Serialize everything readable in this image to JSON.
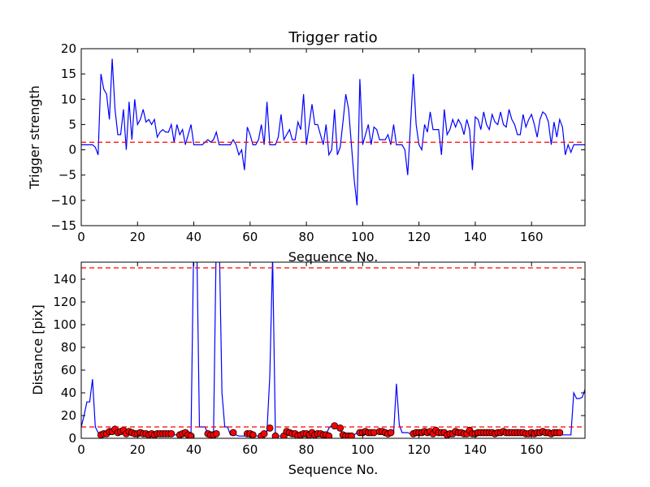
{
  "chart_data": [
    {
      "type": "line",
      "title": "Trigger ratio",
      "xlabel": "Sequence No.",
      "ylabel": "Trigger strength",
      "xlim": [
        0,
        179
      ],
      "ylim": [
        -15,
        20
      ],
      "xticks": [
        0,
        20,
        40,
        60,
        80,
        100,
        120,
        140,
        160
      ],
      "yticks": [
        -15,
        -10,
        -5,
        0,
        5,
        10,
        15,
        20
      ],
      "grid": false,
      "series": [
        {
          "color": "#0000ff",
          "style": "solid",
          "x": [
            0,
            1,
            2,
            3,
            4,
            5,
            6,
            7,
            8,
            9,
            10,
            11,
            12,
            13,
            14,
            15,
            16,
            17,
            18,
            19,
            20,
            21,
            22,
            23,
            24,
            25,
            26,
            27,
            28,
            29,
            30,
            31,
            32,
            33,
            34,
            35,
            36,
            37,
            38,
            39,
            40,
            41,
            42,
            43,
            44,
            45,
            46,
            47,
            48,
            49,
            50,
            51,
            52,
            53,
            54,
            55,
            56,
            57,
            58,
            59,
            60,
            61,
            62,
            63,
            64,
            65,
            66,
            67,
            68,
            69,
            70,
            71,
            72,
            73,
            74,
            75,
            76,
            77,
            78,
            79,
            80,
            81,
            82,
            83,
            84,
            85,
            86,
            87,
            88,
            89,
            90,
            91,
            92,
            93,
            94,
            95,
            96,
            97,
            98,
            99,
            100,
            101,
            102,
            103,
            104,
            105,
            106,
            107,
            108,
            109,
            110,
            111,
            112,
            113,
            114,
            115,
            116,
            117,
            118,
            119,
            120,
            121,
            122,
            123,
            124,
            125,
            126,
            127,
            128,
            129,
            130,
            131,
            132,
            133,
            134,
            135,
            136,
            137,
            138,
            139,
            140,
            141,
            142,
            143,
            144,
            145,
            146,
            147,
            148,
            149,
            150,
            151,
            152,
            153,
            154,
            155,
            156,
            157,
            158,
            159,
            160,
            161,
            162,
            163,
            164,
            165,
            166,
            167,
            168,
            169,
            170,
            171,
            172,
            173,
            174,
            175,
            176,
            177,
            178,
            179
          ],
          "values": [
            1,
            1,
            1,
            1,
            1,
            0.5,
            -1,
            15,
            12,
            11,
            6,
            18,
            8,
            3,
            3,
            8,
            0,
            9.5,
            2,
            10,
            5,
            6,
            8,
            5.5,
            6,
            5,
            6,
            2.5,
            3.5,
            4,
            3.5,
            3.5,
            5,
            1.5,
            5,
            3,
            4,
            1,
            3,
            5,
            1,
            1,
            1,
            1,
            1.5,
            2,
            1.5,
            2,
            3.5,
            1,
            1,
            1,
            1,
            1,
            2,
            1,
            -1,
            0,
            -4,
            4.5,
            3,
            1,
            1,
            2,
            5,
            1,
            9.5,
            1,
            1,
            1,
            2.5,
            7,
            2,
            3,
            4,
            2,
            2,
            5.5,
            4,
            11,
            1,
            5,
            9,
            5,
            5,
            3,
            1,
            5,
            -1,
            0,
            8,
            -1,
            0.5,
            5.5,
            11,
            8,
            1,
            -6,
            -11,
            14,
            1,
            3,
            5,
            1,
            4.5,
            4,
            2,
            2,
            2,
            3,
            1,
            5,
            1,
            1,
            1,
            0,
            -5,
            5,
            15,
            5,
            1,
            0,
            5,
            3.5,
            7.5,
            4,
            4,
            4,
            -1,
            8,
            3,
            4,
            6,
            4.5,
            6,
            5,
            3,
            6,
            4,
            -4,
            6.5,
            6,
            4,
            7.5,
            5,
            4,
            7,
            5.5,
            5,
            7.5,
            5,
            4.5,
            8,
            6,
            5,
            3,
            3,
            7,
            4.5,
            6,
            7,
            5,
            2.5,
            6,
            7.5,
            7,
            5.5,
            1,
            5.5,
            2.5,
            6,
            4.5,
            -1,
            1,
            -0.5,
            1,
            1,
            1,
            1,
            1
          ]
        },
        {
          "color": "#ff0000",
          "style": "dashed",
          "y": 1.5
        }
      ]
    },
    {
      "type": "line",
      "title": "",
      "xlabel": "Sequence No.",
      "ylabel": "Distance [pix]",
      "xlim": [
        0,
        179
      ],
      "ylim": [
        0,
        155
      ],
      "xticks": [
        0,
        20,
        40,
        60,
        80,
        100,
        120,
        140,
        160
      ],
      "yticks": [
        0,
        20,
        40,
        60,
        80,
        100,
        120,
        140
      ],
      "grid": false,
      "series": [
        {
          "color": "#0000ff",
          "style": "solid",
          "x": [
            0,
            1,
            2,
            3,
            4,
            5,
            6,
            7,
            8,
            9,
            10,
            11,
            12,
            13,
            14,
            15,
            16,
            17,
            18,
            19,
            20,
            21,
            22,
            23,
            24,
            25,
            26,
            27,
            28,
            29,
            30,
            31,
            32,
            33,
            34,
            35,
            36,
            37,
            38,
            39,
            40,
            41,
            42,
            43,
            44,
            45,
            46,
            47,
            48,
            49,
            50,
            51,
            52,
            53,
            54,
            55,
            56,
            57,
            58,
            59,
            60,
            61,
            62,
            63,
            64,
            65,
            66,
            67,
            68,
            69,
            70,
            71,
            72,
            73,
            74,
            75,
            76,
            77,
            78,
            79,
            80,
            81,
            82,
            83,
            84,
            85,
            86,
            87,
            88,
            89,
            90,
            91,
            92,
            93,
            94,
            95,
            96,
            97,
            98,
            99,
            100,
            101,
            102,
            103,
            104,
            105,
            106,
            107,
            108,
            109,
            110,
            111,
            112,
            113,
            114,
            115,
            116,
            117,
            118,
            119,
            120,
            121,
            122,
            123,
            124,
            125,
            126,
            127,
            128,
            129,
            130,
            131,
            132,
            133,
            134,
            135,
            136,
            137,
            138,
            139,
            140,
            141,
            142,
            143,
            144,
            145,
            146,
            147,
            148,
            149,
            150,
            151,
            152,
            153,
            154,
            155,
            156,
            157,
            158,
            159,
            160,
            161,
            162,
            163,
            164,
            165,
            166,
            167,
            168,
            169,
            170,
            171,
            172,
            173,
            174,
            175,
            176,
            177,
            178,
            179
          ],
          "values": [
            10,
            20,
            32,
            32,
            52,
            10,
            5,
            3,
            4,
            4,
            6,
            6,
            8,
            5,
            6,
            7,
            4,
            6,
            5,
            4,
            4,
            5,
            4,
            4,
            3,
            4,
            3,
            4,
            4,
            4,
            4,
            4,
            4,
            3,
            3,
            4,
            5,
            3,
            2,
            2,
            180,
            180,
            10,
            10,
            10,
            4,
            3,
            3,
            180,
            180,
            40,
            10,
            10,
            3,
            3,
            3,
            2,
            2,
            2,
            3,
            3,
            3,
            2,
            2,
            4,
            5,
            6,
            55,
            160,
            2,
            2,
            2,
            2,
            3,
            5,
            4,
            4,
            2,
            3,
            4,
            4,
            3,
            5,
            3,
            4,
            4,
            3,
            3,
            9,
            11,
            10,
            9,
            8,
            3,
            2,
            2,
            2,
            3,
            5,
            5,
            6,
            5,
            5,
            5,
            4,
            6,
            6,
            5,
            4,
            5,
            5,
            5,
            48,
            12,
            5,
            5,
            5,
            4,
            4,
            5,
            5,
            5,
            6,
            5,
            6,
            4,
            7,
            5,
            5,
            5,
            3,
            4,
            4,
            6,
            5,
            5,
            4,
            4,
            7,
            4,
            4,
            5,
            5,
            5,
            5,
            5,
            5,
            4,
            5,
            5,
            6,
            5,
            5,
            5,
            5,
            5,
            5,
            5,
            4,
            4,
            5,
            4,
            5,
            5,
            6,
            5,
            5,
            4,
            5,
            5,
            5,
            3,
            3,
            3,
            3,
            40,
            35,
            35,
            36,
            43
          ]
        },
        {
          "color": "#ff0000",
          "style": "markers",
          "x": [
            7,
            8,
            9,
            10,
            11,
            12,
            13,
            14,
            15,
            16,
            17,
            18,
            19,
            20,
            21,
            22,
            23,
            24,
            25,
            26,
            27,
            28,
            29,
            30,
            31,
            32,
            35,
            36,
            37,
            38,
            39,
            45,
            46,
            47,
            48,
            54,
            59,
            60,
            61,
            64,
            65,
            67,
            69,
            72,
            73,
            74,
            75,
            76,
            77,
            78,
            79,
            80,
            81,
            82,
            83,
            84,
            85,
            86,
            87,
            88,
            90,
            92,
            93,
            94,
            95,
            96,
            99,
            100,
            101,
            102,
            103,
            104,
            106,
            107,
            108,
            109,
            110,
            118,
            119,
            120,
            121,
            122,
            123,
            124,
            125,
            126,
            127,
            128,
            129,
            130,
            131,
            132,
            133,
            134,
            135,
            136,
            137,
            138,
            139,
            140,
            141,
            142,
            143,
            144,
            145,
            146,
            147,
            148,
            149,
            150,
            151,
            152,
            153,
            154,
            155,
            156,
            157,
            158,
            159,
            160,
            161,
            162,
            163,
            164,
            165,
            166,
            167,
            168,
            169,
            170
          ],
          "values": [
            3,
            4,
            4,
            6,
            6,
            8,
            5,
            6,
            7,
            4,
            6,
            5,
            4,
            4,
            5,
            4,
            4,
            3,
            4,
            3,
            4,
            4,
            4,
            4,
            4,
            4,
            3,
            4,
            5,
            3,
            2,
            4,
            3,
            3,
            4,
            5,
            4,
            4,
            3,
            2,
            4,
            9,
            2,
            2,
            6,
            5,
            4,
            4,
            2,
            3,
            4,
            4,
            3,
            5,
            3,
            4,
            4,
            3,
            3,
            2,
            11,
            9,
            3,
            2,
            2,
            2,
            5,
            5,
            6,
            5,
            5,
            5,
            6,
            6,
            5,
            4,
            5,
            4,
            5,
            5,
            5,
            6,
            5,
            6,
            4,
            7,
            5,
            5,
            5,
            3,
            4,
            4,
            6,
            5,
            5,
            4,
            4,
            7,
            4,
            4,
            5,
            5,
            5,
            5,
            5,
            5,
            4,
            5,
            5,
            6,
            5,
            5,
            5,
            5,
            5,
            5,
            5,
            4,
            4,
            5,
            4,
            5,
            5,
            6,
            5,
            5,
            4,
            5,
            5,
            5
          ]
        },
        {
          "color": "#ff0000",
          "style": "dashed",
          "y": 150
        },
        {
          "color": "#ff0000",
          "style": "dashed",
          "y": 10
        }
      ]
    }
  ]
}
